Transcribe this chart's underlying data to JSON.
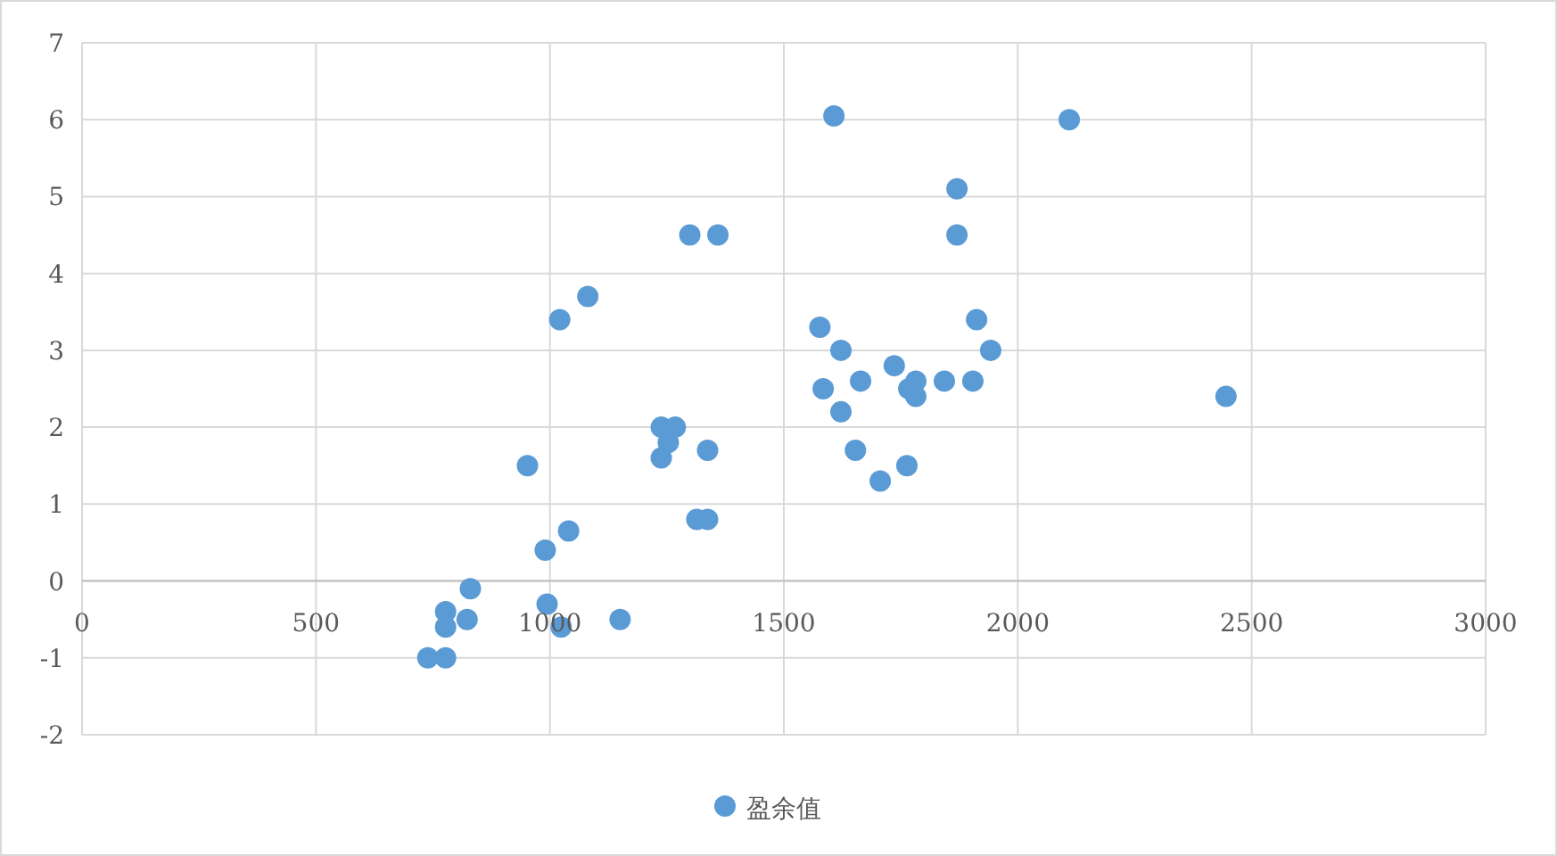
{
  "chart_data": {
    "type": "scatter",
    "x": [
      739,
      777,
      777,
      777,
      823,
      830,
      952,
      990,
      994,
      1024,
      1021,
      1081,
      1040,
      1150,
      1238,
      1238,
      1253,
      1268,
      1314,
      1337,
      1337,
      1299,
      1359,
      1577,
      1584,
      1622,
      1622,
      1664,
      1653,
      1607,
      1706,
      1736,
      1767,
      1782,
      1782,
      1843,
      1904,
      1763,
      1870,
      1870,
      1912,
      1942,
      2110,
      2445
    ],
    "series": [
      {
        "name": "盈余值",
        "color": "#5b9bd5",
        "values": [
          -1.0,
          -1.0,
          -0.4,
          -0.6,
          -0.5,
          -0.1,
          1.5,
          0.4,
          -0.3,
          -0.6,
          3.4,
          3.7,
          0.65,
          -0.5,
          2.0,
          1.6,
          1.8,
          2.0,
          0.8,
          0.8,
          1.7,
          4.5,
          4.5,
          3.3,
          2.5,
          3.0,
          2.2,
          2.6,
          1.7,
          6.05,
          1.3,
          2.8,
          2.5,
          2.4,
          2.6,
          2.6,
          2.6,
          1.5,
          5.1,
          4.5,
          3.4,
          3.0,
          6.0,
          2.4
        ]
      }
    ],
    "xlim": [
      0,
      3000
    ],
    "xticks": [
      0,
      500,
      1000,
      1500,
      2000,
      2500,
      3000
    ],
    "ylim": [
      -2,
      7
    ],
    "yticks": [
      -2,
      -1,
      0,
      1,
      2,
      3,
      4,
      5,
      6,
      7
    ],
    "grid": true,
    "legend": "bottom",
    "marker": "circle"
  }
}
